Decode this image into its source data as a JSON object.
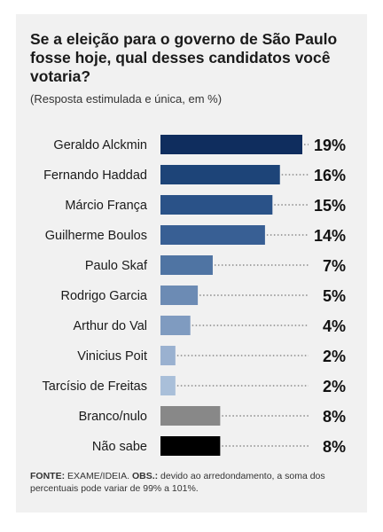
{
  "title": "Se a eleição para o governo de São Paulo fosse hoje, qual desses candidatos você votaria?",
  "subtitle": "(Resposta estimulada e única, em %)",
  "source": {
    "fonte_label": "FONTE:",
    "fonte_text": " EXAME/IDEIA. ",
    "obs_label": "OBS.:",
    "obs_text": " devido ao arredondamento, a soma dos percentuais pode variar de 99% a 101%."
  },
  "chart_data": {
    "type": "bar",
    "orientation": "horizontal",
    "title": "Se a eleição para o governo de São Paulo fosse hoje, qual desses candidatos você votaria?",
    "subtitle": "(Resposta estimulada e única, em %)",
    "unit": "%",
    "grid": false,
    "categories": [
      "Geraldo Alckmin",
      "Fernando Haddad",
      "Márcio França",
      "Guilherme Boulos",
      "Paulo Skaf",
      "Rodrigo Garcia",
      "Arthur do Val",
      "Vinicius Poit",
      "Tarcísio de Freitas",
      "Branco/nulo",
      "Não sabe"
    ],
    "values": [
      19,
      16,
      15,
      14,
      7,
      5,
      4,
      2,
      2,
      8,
      8
    ],
    "value_labels": [
      "19%",
      "16%",
      "15%",
      "14%",
      "7%",
      "5%",
      "4%",
      "2%",
      "2%",
      "8%",
      "8%"
    ],
    "bar_colors": [
      "#0f2d5e",
      "#1d4478",
      "#2a5288",
      "#385f94",
      "#4f74a3",
      "#6c8bb4",
      "#7f9bc0",
      "#9ab1d0",
      "#a9bfd9",
      "#888888",
      "#000000"
    ],
    "xlim": [
      0,
      19
    ]
  }
}
